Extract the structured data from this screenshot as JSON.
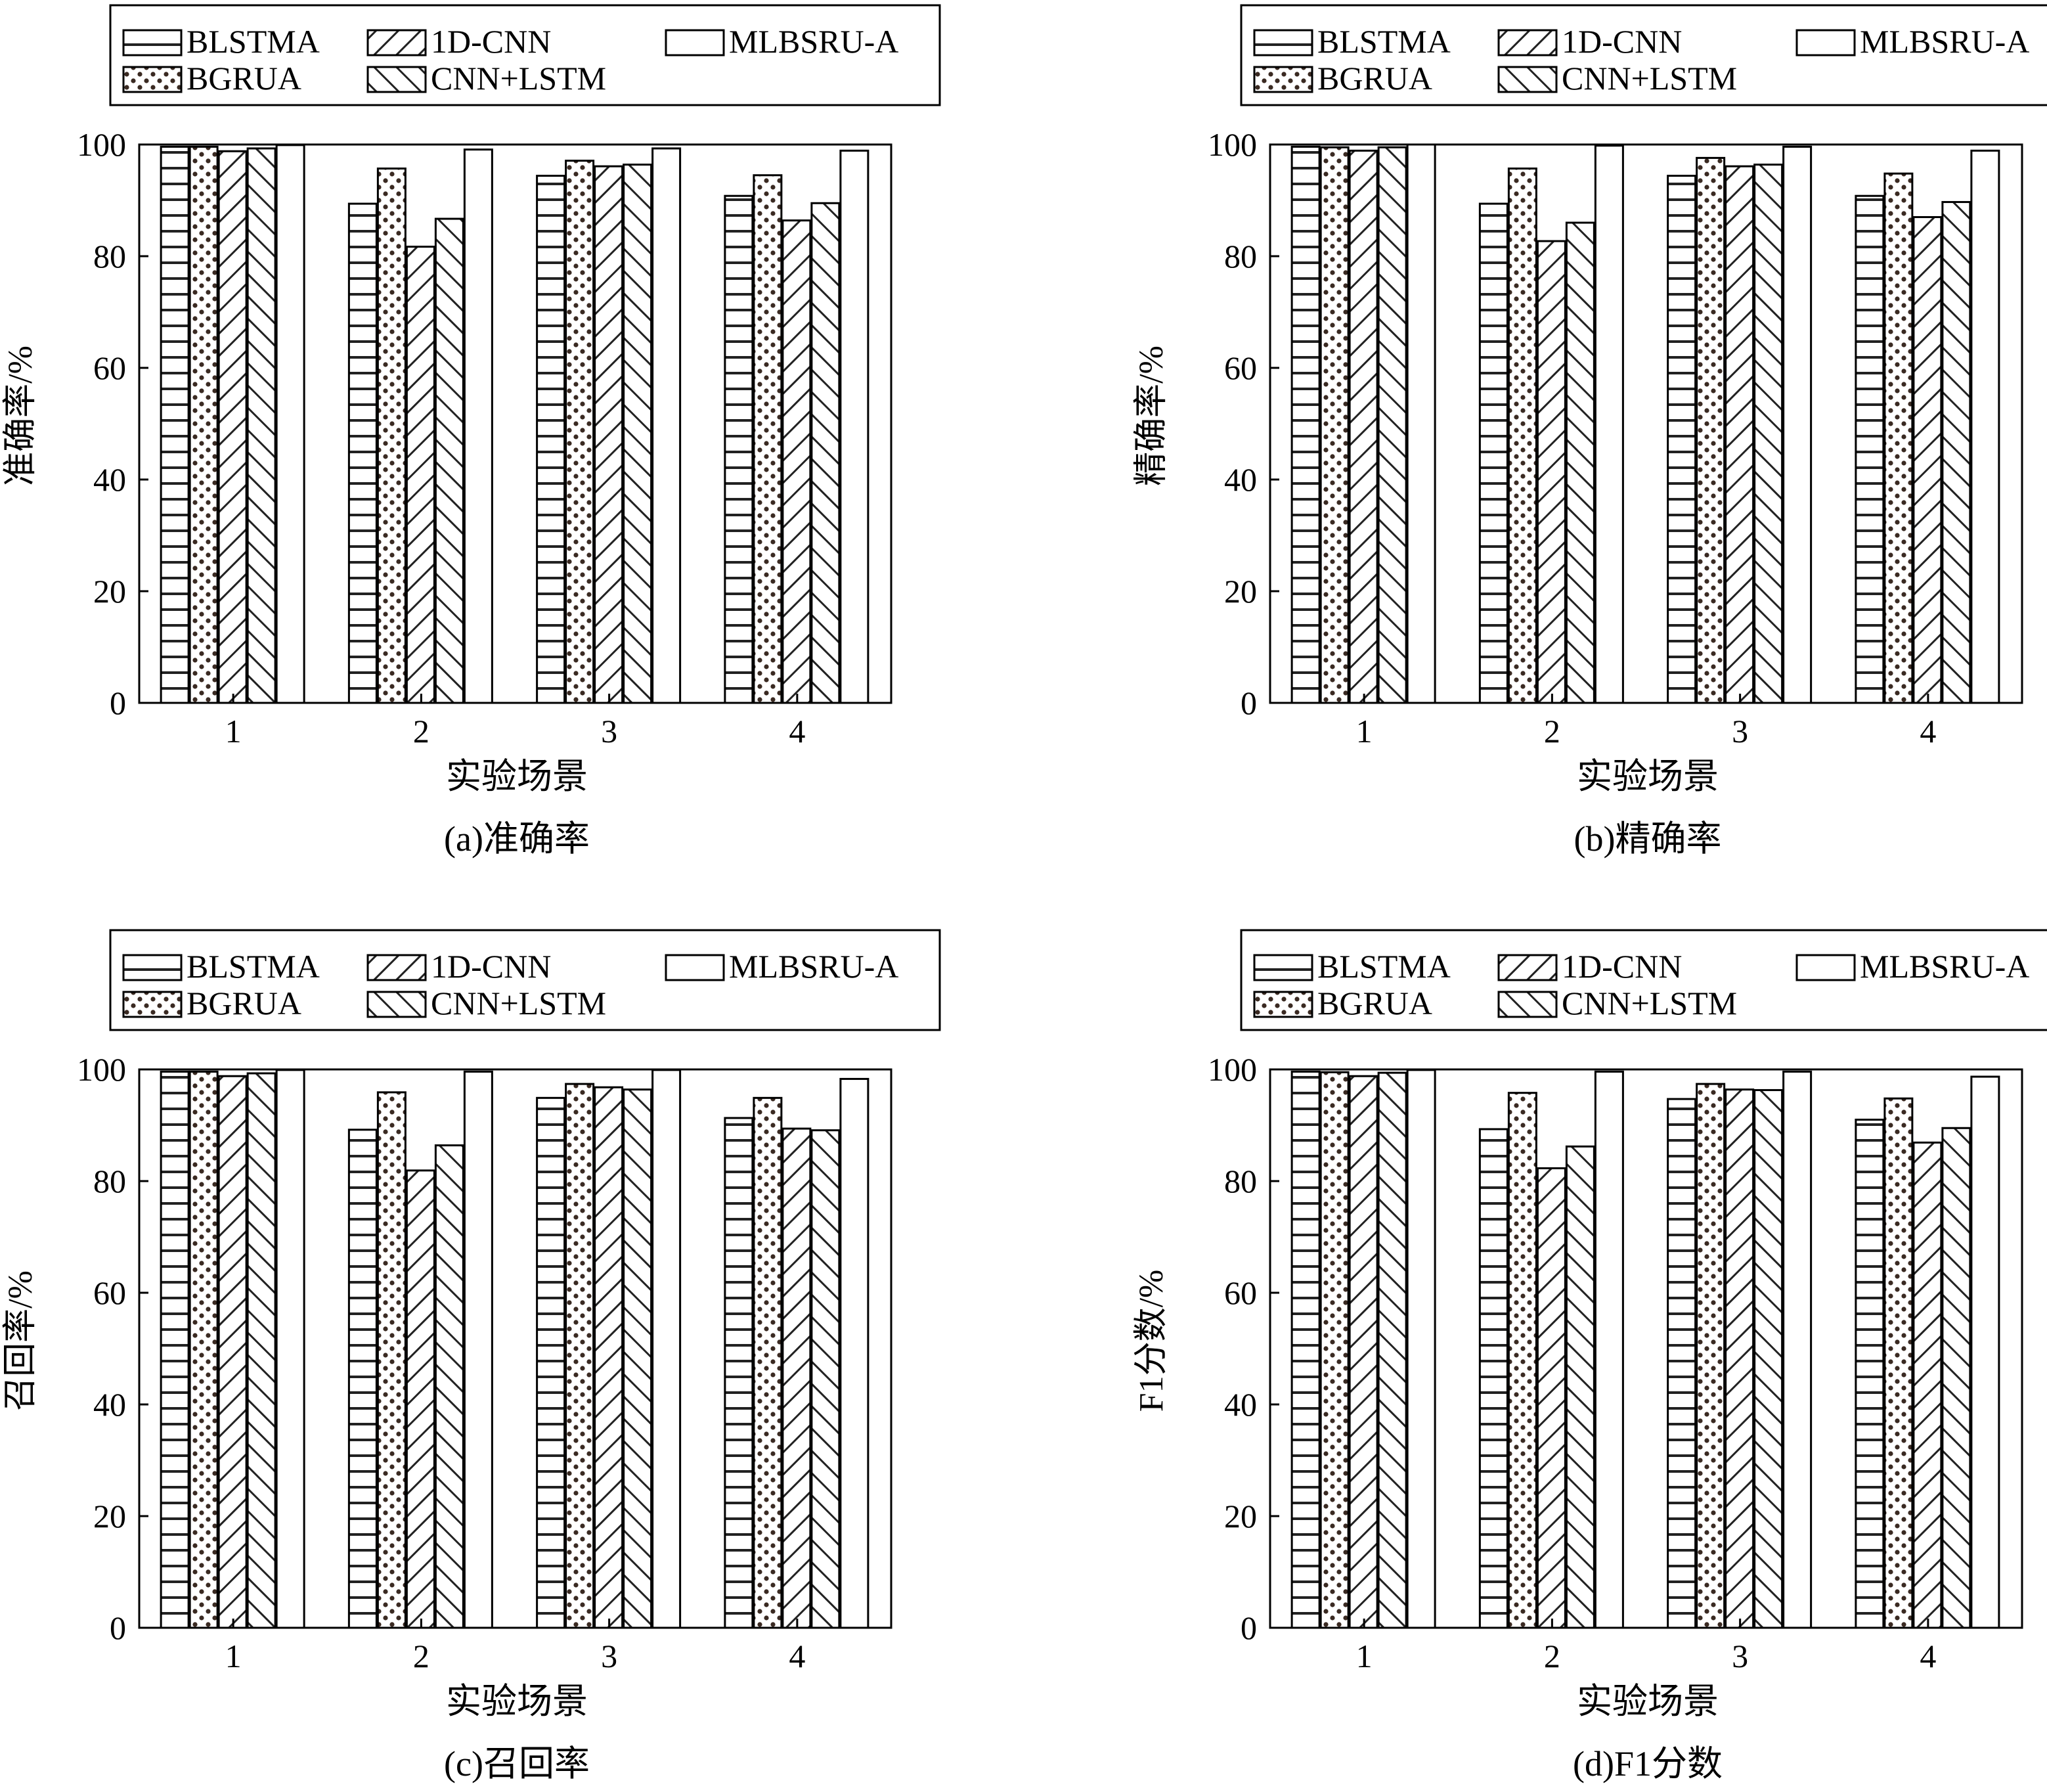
{
  "legend_labels": [
    "BLSTMA",
    "1D-CNN",
    "MLBSRU-A",
    "BGRUA",
    "CNN+LSTM"
  ],
  "chart_data": [
    {
      "type": "bar",
      "caption": "(a)准确率",
      "xlabel": "实验场景",
      "ylabel": "准确率/%",
      "categories": [
        "1",
        "2",
        "3",
        "4"
      ],
      "ylim": [
        0,
        100
      ],
      "yticks": [
        "0",
        "20",
        "40",
        "60",
        "80",
        "100"
      ],
      "legend_position": "top",
      "grid": false,
      "series": [
        {
          "name": "BLSTMA",
          "values": [
            99.6,
            89.4,
            94.4,
            90.8
          ]
        },
        {
          "name": "BGRUA",
          "values": [
            99.6,
            95.7,
            97.1,
            94.5
          ]
        },
        {
          "name": "1D-CNN",
          "values": [
            98.8,
            81.7,
            96.1,
            86.4
          ]
        },
        {
          "name": "CNN+LSTM",
          "values": [
            99.3,
            86.7,
            96.4,
            89.5
          ]
        },
        {
          "name": "MLBSRU-A",
          "values": [
            99.9,
            99.1,
            99.3,
            98.9
          ]
        }
      ]
    },
    {
      "type": "bar",
      "caption": "(b)精确率",
      "xlabel": "实验场景",
      "ylabel": "精确率/%",
      "categories": [
        "1",
        "2",
        "3",
        "4"
      ],
      "ylim": [
        0,
        100
      ],
      "yticks": [
        "0",
        "20",
        "40",
        "60",
        "80",
        "100"
      ],
      "legend_position": "top",
      "grid": false,
      "series": [
        {
          "name": "BLSTMA",
          "values": [
            99.6,
            89.4,
            94.4,
            90.8
          ]
        },
        {
          "name": "BGRUA",
          "values": [
            99.5,
            95.7,
            97.6,
            94.8
          ]
        },
        {
          "name": "1D-CNN",
          "values": [
            98.9,
            82.7,
            96.1,
            87.0
          ]
        },
        {
          "name": "CNN+LSTM",
          "values": [
            99.5,
            86.0,
            96.4,
            89.7
          ]
        },
        {
          "name": "MLBSRU-A",
          "values": [
            100,
            99.8,
            99.6,
            98.9
          ]
        }
      ]
    },
    {
      "type": "bar",
      "caption": "(c)召回率",
      "xlabel": "实验场景",
      "ylabel": "召回率/%",
      "categories": [
        "1",
        "2",
        "3",
        "4"
      ],
      "ylim": [
        0,
        100
      ],
      "yticks": [
        "0",
        "20",
        "40",
        "60",
        "80",
        "100"
      ],
      "legend_position": "top",
      "grid": false,
      "series": [
        {
          "name": "BLSTMA",
          "values": [
            99.6,
            89.2,
            94.9,
            91.3
          ]
        },
        {
          "name": "BGRUA",
          "values": [
            99.6,
            95.9,
            97.4,
            94.9
          ]
        },
        {
          "name": "1D-CNN",
          "values": [
            98.8,
            81.9,
            96.8,
            89.4
          ]
        },
        {
          "name": "CNN+LSTM",
          "values": [
            99.3,
            86.4,
            96.4,
            89.1
          ]
        },
        {
          "name": "MLBSRU-A",
          "values": [
            99.9,
            99.6,
            99.9,
            98.3
          ]
        }
      ]
    },
    {
      "type": "bar",
      "caption": "(d)F1分数",
      "xlabel": "实验场景",
      "ylabel": "F1分数/%",
      "categories": [
        "1",
        "2",
        "3",
        "4"
      ],
      "ylim": [
        0,
        100
      ],
      "yticks": [
        "0",
        "20",
        "40",
        "60",
        "80",
        "100"
      ],
      "legend_position": "top",
      "grid": false,
      "series": [
        {
          "name": "BLSTMA",
          "values": [
            99.6,
            89.3,
            94.7,
            91.0
          ]
        },
        {
          "name": "BGRUA",
          "values": [
            99.5,
            95.8,
            97.4,
            94.8
          ]
        },
        {
          "name": "1D-CNN",
          "values": [
            98.8,
            82.3,
            96.4,
            86.9
          ]
        },
        {
          "name": "CNN+LSTM",
          "values": [
            99.4,
            86.2,
            96.3,
            89.5
          ]
        },
        {
          "name": "MLBSRU-A",
          "values": [
            99.9,
            99.6,
            99.6,
            98.7
          ]
        }
      ]
    }
  ]
}
